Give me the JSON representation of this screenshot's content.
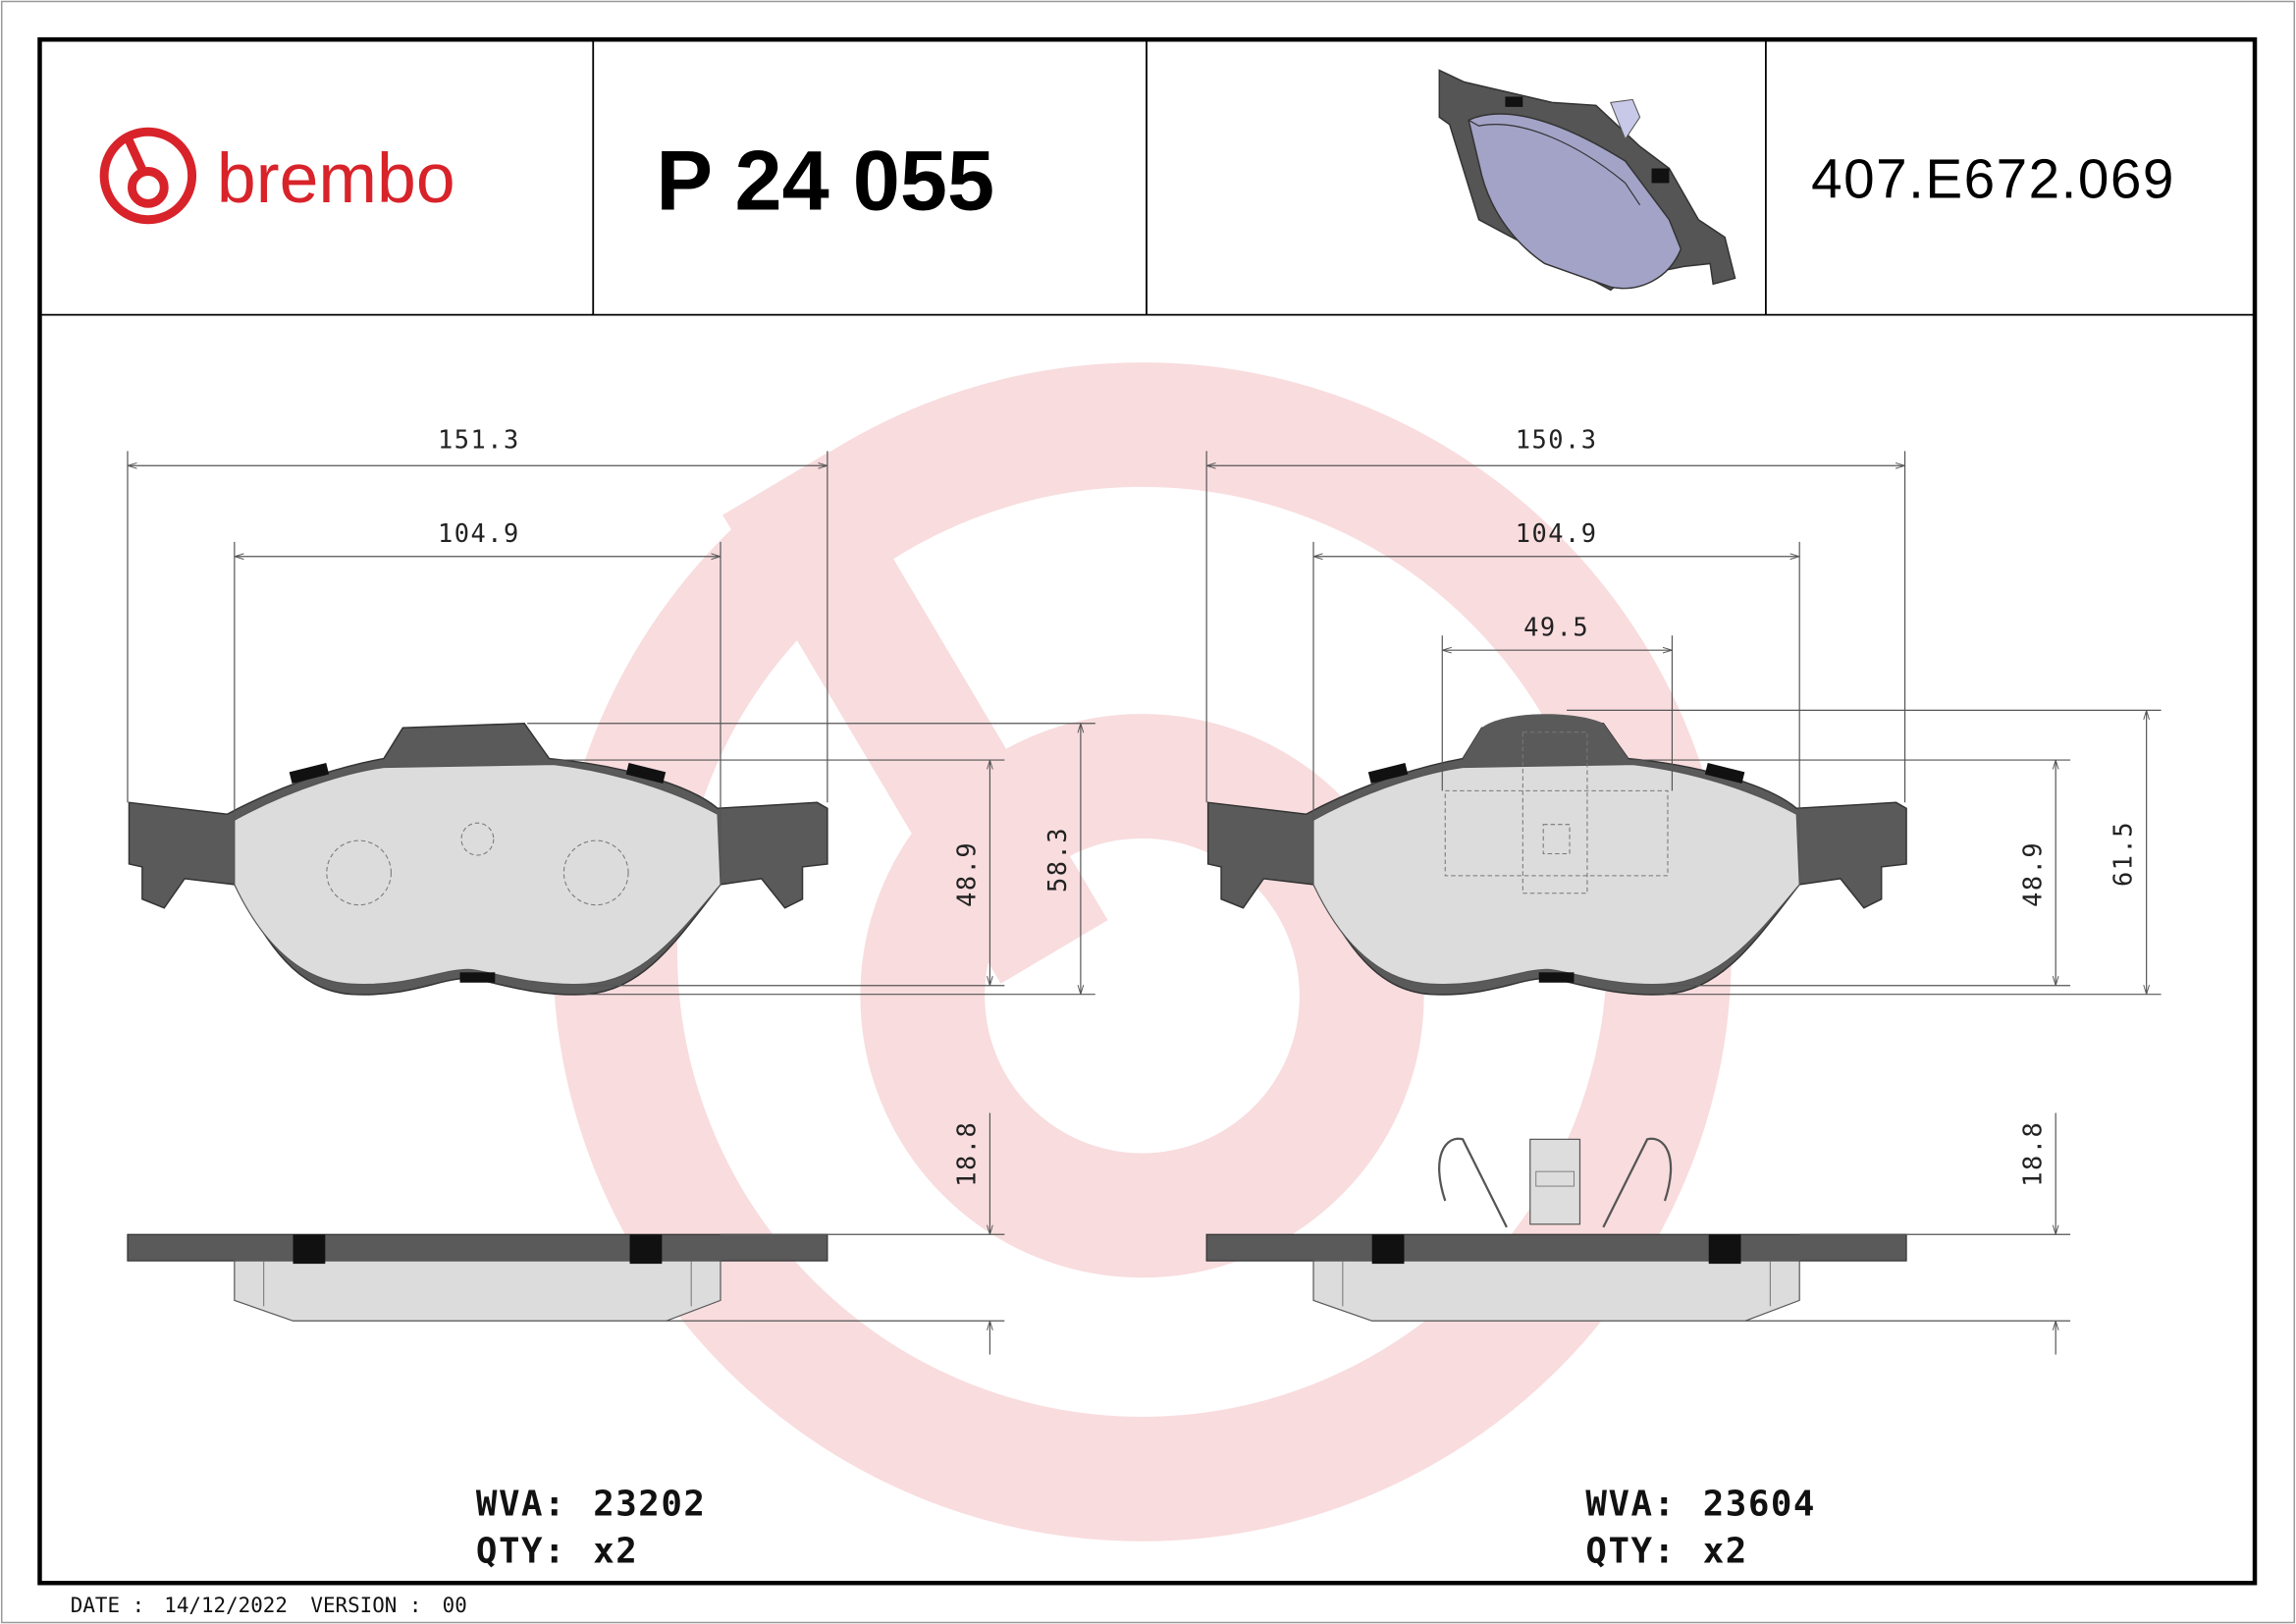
{
  "header": {
    "brand": "brembo",
    "part_number": "P 24 055",
    "reference": "407.E672.069"
  },
  "colors": {
    "brand_red": "#d8232a",
    "plate": "#5a5a5a",
    "friction": "#dcdcdc",
    "iso_friction": "#a3a3c8"
  },
  "left_pad": {
    "dimensions": {
      "width_overall": "151.3",
      "width_friction": "104.9",
      "height_friction": "48.9",
      "height_overall": "58.3",
      "thickness": "18.8"
    },
    "wva_label": "WVA:",
    "wva": "23202",
    "qty_label": "QTY:",
    "qty": "x2"
  },
  "right_pad": {
    "dimensions": {
      "width_overall": "150.3",
      "width_friction": "104.9",
      "width_clip": "49.5",
      "height_friction": "48.9",
      "height_overall": "61.5",
      "thickness": "18.8"
    },
    "wva_label": "WVA:",
    "wva": "23604",
    "qty_label": "QTY:",
    "qty": "x2"
  },
  "footer": {
    "date_label": "DATE :",
    "date": "14/12/2022",
    "version_label": "VERSION :",
    "version": "00"
  }
}
